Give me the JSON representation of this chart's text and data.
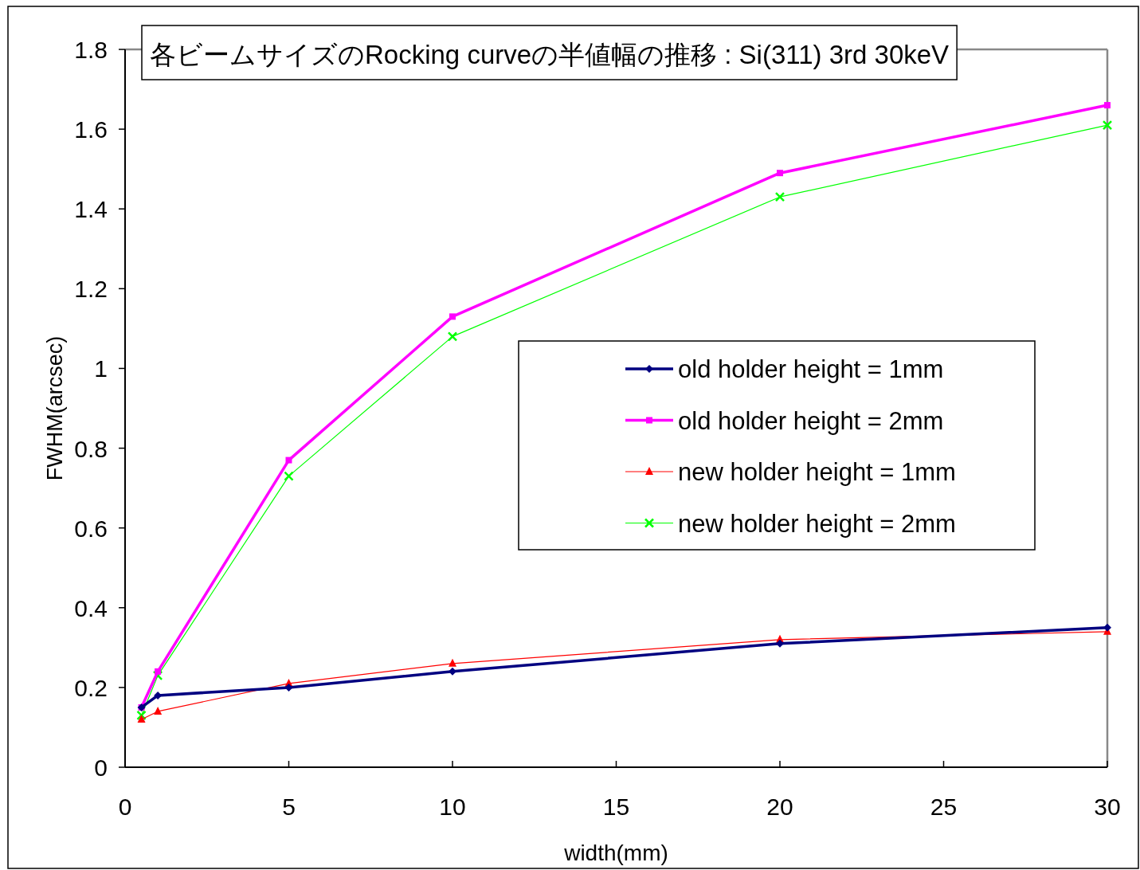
{
  "chart_data": {
    "type": "line",
    "title": "各ビームサイズのRocking curveの半値幅の推移 : Si(311) 3rd 30keV",
    "xlabel": "width(mm)",
    "ylabel": "FWHM(arcsec)",
    "x": [
      0.5,
      1,
      5,
      10,
      20,
      30
    ],
    "xlim": [
      0,
      30
    ],
    "xticks": [
      0,
      5,
      10,
      15,
      20,
      25,
      30
    ],
    "ylim": [
      0,
      1.8
    ],
    "yticks": [
      0,
      0.2,
      0.4,
      0.6,
      0.8,
      1,
      1.2,
      1.4,
      1.6,
      1.8
    ],
    "grid": false,
    "legend": "right",
    "series": [
      {
        "name": "old holder height = 1mm",
        "color": "#000080",
        "marker": "diamond",
        "values": [
          0.15,
          0.18,
          0.2,
          0.24,
          0.31,
          0.35
        ]
      },
      {
        "name": "old holder height = 2mm",
        "color": "#ff00ff",
        "marker": "square",
        "values": [
          0.15,
          0.24,
          0.77,
          1.13,
          1.49,
          1.66
        ]
      },
      {
        "name": "new holder height = 1mm",
        "color": "#ff0000",
        "marker": "triangle",
        "values": [
          0.12,
          0.14,
          0.21,
          0.26,
          0.32,
          0.34
        ]
      },
      {
        "name": "new holder height = 2mm",
        "color": "#00ff00",
        "marker": "cross",
        "values": [
          0.13,
          0.23,
          0.73,
          1.08,
          1.43,
          1.61
        ]
      }
    ]
  }
}
